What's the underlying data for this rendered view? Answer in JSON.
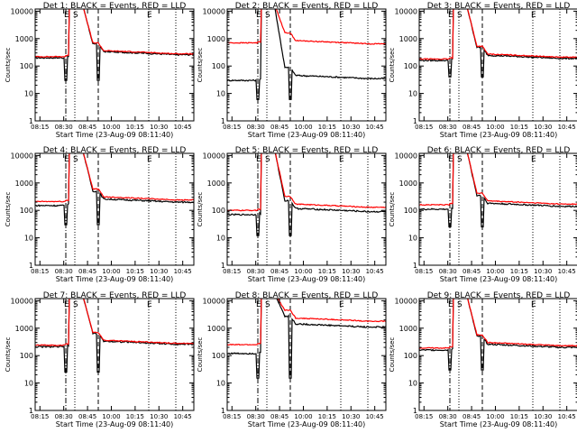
{
  "shared": {
    "ylabel": "Counts/sec",
    "xlabel": "Start Time (23-Aug-09 08:11:40)",
    "x_tick_labels": [
      "08:15",
      "08:30",
      "08:45",
      "10:00",
      "10:15",
      "10:30",
      "10:45"
    ],
    "y_tick_labels": [
      "1",
      "10",
      "100",
      "1000",
      "10000"
    ],
    "marker_letters": [
      "E",
      "S",
      "E"
    ],
    "ylim": [
      1,
      12000
    ],
    "x_range_minutes": [
      0,
      88
    ],
    "ylog": true,
    "series_colors": {
      "events": "#000000",
      "lld": "#ff0000"
    }
  },
  "chart_data": [
    {
      "type": "line",
      "title": "Det 1: BLACK = Events, RED = LLD",
      "series": [
        {
          "key": "events",
          "baseline": 200,
          "tail": 260,
          "dip": 30
        },
        {
          "key": "lld",
          "baseline": 220,
          "tail": 280
        }
      ]
    },
    {
      "type": "line",
      "title": "Det 2: BLACK = Events, RED = LLD",
      "series": [
        {
          "key": "events",
          "baseline": 30,
          "tail": 35,
          "dip": 6
        },
        {
          "key": "lld",
          "baseline": 700,
          "tail": 650
        }
      ]
    },
    {
      "type": "line",
      "title": "Det 3: BLACK = Events, RED = LLD",
      "series": [
        {
          "key": "events",
          "baseline": 160,
          "tail": 190,
          "dip": 40
        },
        {
          "key": "lld",
          "baseline": 180,
          "tail": 210
        }
      ]
    },
    {
      "type": "line",
      "title": "Det 4: BLACK = Events, RED = LLD",
      "series": [
        {
          "key": "events",
          "baseline": 150,
          "tail": 200,
          "dip": 30
        },
        {
          "key": "lld",
          "baseline": 210,
          "tail": 240
        }
      ]
    },
    {
      "type": "line",
      "title": "Det 5: BLACK = Events, RED = LLD",
      "series": [
        {
          "key": "events",
          "baseline": 70,
          "tail": 90,
          "dip": 12
        },
        {
          "key": "lld",
          "baseline": 100,
          "tail": 130
        }
      ]
    },
    {
      "type": "line",
      "title": "Det 6: BLACK = Events, RED = LLD",
      "series": [
        {
          "key": "events",
          "baseline": 110,
          "tail": 140,
          "dip": 25
        },
        {
          "key": "lld",
          "baseline": 160,
          "tail": 170
        }
      ]
    },
    {
      "type": "line",
      "title": "Det 7: BLACK = Events, RED = LLD",
      "series": [
        {
          "key": "events",
          "baseline": 210,
          "tail": 260,
          "dip": 25
        },
        {
          "key": "lld",
          "baseline": 240,
          "tail": 280
        }
      ]
    },
    {
      "type": "line",
      "title": "Det 8: BLACK = Events, RED = LLD",
      "series": [
        {
          "key": "events",
          "baseline": 120,
          "tail": 1100,
          "dip": 15
        },
        {
          "key": "lld",
          "baseline": 250,
          "tail": 1800
        }
      ]
    },
    {
      "type": "line",
      "title": "Det 9: BLACK = Events, RED = LLD",
      "series": [
        {
          "key": "events",
          "baseline": 160,
          "tail": 200,
          "dip": 30
        },
        {
          "key": "lld",
          "baseline": 190,
          "tail": 230
        }
      ]
    }
  ]
}
